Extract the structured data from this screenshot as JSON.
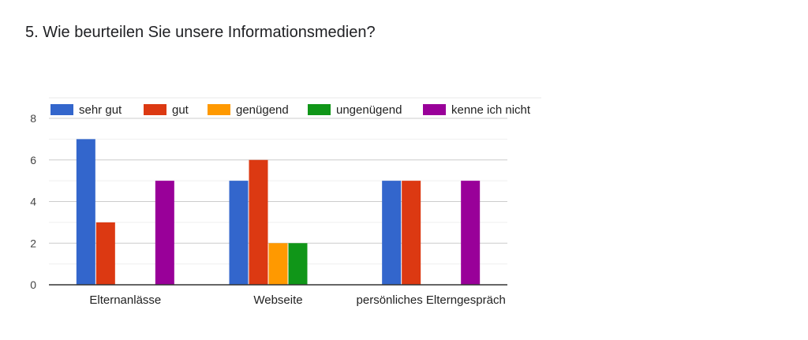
{
  "question": {
    "title": "5. Wie beurteilen Sie unsere Informationsmedien?"
  },
  "chart_data": {
    "type": "bar",
    "categories": [
      "Elternanlässe",
      "Webseite",
      "persönliches Elterngespräch"
    ],
    "series": [
      {
        "name": "sehr gut",
        "color": "#3366cc",
        "values": [
          7,
          5,
          5
        ]
      },
      {
        "name": "gut",
        "color": "#dc3912",
        "values": [
          3,
          6,
          5
        ]
      },
      {
        "name": "genügend",
        "color": "#ff9900",
        "values": [
          0,
          2,
          0
        ]
      },
      {
        "name": "ungenügend",
        "color": "#109618",
        "values": [
          0,
          2,
          0
        ]
      },
      {
        "name": "kenne ich nicht",
        "color": "#990099",
        "values": [
          5,
          0,
          5
        ]
      }
    ],
    "yticks": [
      0,
      2,
      4,
      6,
      8
    ],
    "ylim": [
      0,
      8
    ],
    "grid": true,
    "legend": "top"
  }
}
